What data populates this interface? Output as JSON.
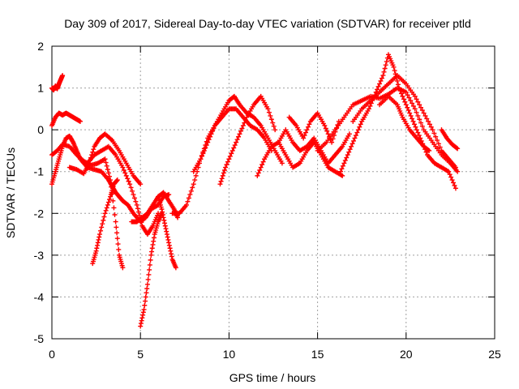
{
  "chart_data": {
    "type": "scatter",
    "title": "Day 309 of 2017, Sidereal Day-to-day VTEC variation (SDTVAR) for receiver ptld",
    "xlabel": "GPS time / hours",
    "ylabel": "SDTVAR / TECUs",
    "xlim": [
      0,
      25
    ],
    "ylim": [
      -5,
      2
    ],
    "xticks": [
      "0",
      "5",
      "10",
      "15",
      "20",
      "25"
    ],
    "yticks": [
      "-5",
      "-4",
      "-3",
      "-2",
      "-1",
      "0",
      "1",
      "2"
    ],
    "grid": true,
    "marker": "plus",
    "color": "#ff0000",
    "series": [
      {
        "x": [
          0.0,
          0.1,
          0.2,
          0.3,
          0.4,
          0.5,
          0.6
        ],
        "y": [
          1.0,
          0.95,
          1.05,
          0.98,
          1.1,
          1.2,
          1.3
        ]
      },
      {
        "x": [
          0.0,
          0.2,
          0.4,
          0.6,
          0.8,
          1.0,
          1.2,
          1.4,
          1.6
        ],
        "y": [
          0.1,
          0.3,
          0.4,
          0.35,
          0.4,
          0.35,
          0.3,
          0.25,
          0.2
        ]
      },
      {
        "x": [
          0.0,
          0.3,
          0.6,
          1.0,
          1.4,
          1.8,
          2.2,
          2.6,
          3.0,
          3.3,
          3.6,
          3.8,
          4.0
        ],
        "y": [
          -0.6,
          -0.5,
          -0.35,
          -0.4,
          -0.6,
          -0.75,
          -0.85,
          -0.8,
          -0.7,
          -1.2,
          -2.2,
          -3.0,
          -3.3
        ]
      },
      {
        "x": [
          0.0,
          0.2,
          0.4,
          0.6,
          0.8,
          1.0,
          1.2,
          1.4,
          1.6,
          2.0,
          2.4,
          2.8,
          3.2,
          3.4,
          3.6,
          3.8,
          4.0,
          4.3,
          4.6,
          5.0,
          5.3,
          5.6,
          6.0,
          6.3,
          6.6
        ],
        "y": [
          -1.3,
          -1.0,
          -0.7,
          -0.4,
          -0.2,
          -0.15,
          -0.3,
          -0.5,
          -0.7,
          -0.9,
          -0.95,
          -1.0,
          -1.2,
          -1.35,
          -1.5,
          -1.6,
          -1.7,
          -1.8,
          -2.0,
          -2.2,
          -2.1,
          -1.9,
          -1.8,
          -1.6,
          -1.55
        ]
      },
      {
        "x": [
          1.0,
          1.4,
          1.8,
          2.1,
          2.4,
          2.7,
          3.0,
          3.4,
          3.8,
          4.2,
          4.6,
          5.0
        ],
        "y": [
          -0.9,
          -0.95,
          -1.05,
          -0.8,
          -0.4,
          -0.2,
          -0.1,
          -0.25,
          -0.5,
          -0.8,
          -1.1,
          -1.3
        ]
      },
      {
        "x": [
          2.3,
          2.5,
          2.7,
          3.0,
          3.3,
          3.5,
          3.7
        ],
        "y": [
          -3.2,
          -2.9,
          -2.5,
          -2.0,
          -1.6,
          -1.3,
          -1.2
        ]
      },
      {
        "x": [
          2.0,
          2.4,
          2.8,
          3.2,
          3.6,
          4.0,
          4.4,
          4.8,
          5.1,
          5.4,
          5.7,
          6.0
        ],
        "y": [
          -0.8,
          -0.6,
          -0.5,
          -0.4,
          -0.6,
          -0.9,
          -1.3,
          -1.8,
          -2.3,
          -2.5,
          -2.3,
          -2.0
        ]
      },
      {
        "x": [
          4.5,
          4.8,
          5.1,
          5.4,
          5.7,
          6.0,
          6.3,
          6.6,
          6.9,
          7.1
        ],
        "y": [
          -2.2,
          -2.2,
          -2.1,
          -2.0,
          -1.8,
          -1.6,
          -1.5,
          -1.7,
          -1.9,
          -2.1
        ]
      },
      {
        "x": [
          5.0,
          5.2,
          5.4,
          5.6,
          5.8,
          6.0,
          6.2
        ],
        "y": [
          -4.7,
          -4.3,
          -3.7,
          -3.0,
          -2.5,
          -2.2,
          -2.0
        ]
      },
      {
        "x": [
          6.0,
          6.2,
          6.4,
          6.6,
          6.8,
          7.0
        ],
        "y": [
          -1.6,
          -1.9,
          -2.3,
          -2.7,
          -3.1,
          -3.3
        ]
      },
      {
        "x": [
          6.8,
          7.2,
          7.6,
          8.0,
          8.4,
          8.8,
          9.2,
          9.6,
          10.0,
          10.4,
          10.8,
          11.2,
          11.6,
          12.0,
          12.4
        ],
        "y": [
          -2.0,
          -2.0,
          -1.8,
          -1.3,
          -0.7,
          -0.2,
          0.1,
          0.3,
          0.5,
          0.5,
          0.3,
          0.1,
          0.0,
          -0.2,
          -0.5
        ]
      },
      {
        "x": [
          8.0,
          8.4,
          8.8,
          9.2,
          9.6,
          10.0,
          10.3,
          10.6,
          11.0,
          11.4,
          11.8,
          12.2,
          12.6,
          13.0
        ],
        "y": [
          -1.0,
          -0.7,
          -0.3,
          0.1,
          0.4,
          0.7,
          0.8,
          0.6,
          0.4,
          0.3,
          0.1,
          -0.2,
          -0.5,
          -0.8
        ]
      },
      {
        "x": [
          9.5,
          9.8,
          10.2,
          10.6,
          11.0,
          11.4,
          11.8,
          12.2,
          12.6
        ],
        "y": [
          -1.3,
          -0.9,
          -0.5,
          -0.1,
          0.3,
          0.6,
          0.8,
          0.5,
          0.0
        ]
      },
      {
        "x": [
          11.6,
          12.0,
          12.4,
          12.8,
          13.2,
          13.6,
          14.0,
          14.4,
          14.8,
          15.2,
          15.6,
          16.0,
          16.4,
          16.8
        ],
        "y": [
          -1.1,
          -0.7,
          -0.4,
          -0.3,
          0.0,
          -0.3,
          -0.5,
          -0.4,
          -0.2,
          -0.5,
          -0.8,
          -0.6,
          -0.4,
          -0.1
        ]
      },
      {
        "x": [
          12.8,
          13.2,
          13.6,
          14.0,
          14.4,
          14.8,
          15.2,
          15.6,
          16.0,
          16.4
        ],
        "y": [
          -0.3,
          -0.6,
          -0.9,
          -0.8,
          -0.5,
          -0.3,
          -0.6,
          -0.9,
          -1.0,
          -1.1
        ]
      },
      {
        "x": [
          13.4,
          13.8,
          14.2,
          14.6,
          15.0,
          15.4,
          15.8,
          16.2
        ],
        "y": [
          0.3,
          0.1,
          -0.2,
          0.2,
          0.4,
          0.1,
          -0.3,
          0.2
        ]
      },
      {
        "x": [
          15.0,
          15.5,
          16.0,
          16.5,
          17.0,
          17.5,
          18.0,
          18.5,
          19.0,
          19.5,
          20.0,
          20.5,
          21.0,
          21.5,
          22.0,
          22.5,
          22.9
        ],
        "y": [
          -0.5,
          -0.3,
          0.0,
          0.3,
          0.6,
          0.7,
          0.8,
          0.75,
          0.85,
          1.0,
          0.9,
          0.5,
          0.0,
          -0.3,
          -0.6,
          -0.8,
          -1.0
        ]
      },
      {
        "x": [
          16.3,
          16.7,
          17.1,
          17.5,
          17.9,
          18.3,
          18.7,
          19.0,
          19.3,
          19.6,
          20.0,
          20.4,
          20.8,
          21.2,
          21.6,
          22.0,
          22.4,
          22.8
        ],
        "y": [
          -1.0,
          -0.6,
          -0.2,
          0.2,
          0.5,
          0.9,
          1.3,
          1.8,
          1.5,
          1.0,
          0.6,
          0.2,
          -0.2,
          -0.6,
          -0.8,
          -0.9,
          -1.0,
          -1.4
        ]
      },
      {
        "x": [
          17.0,
          17.5,
          18.0,
          18.5,
          19.0,
          19.5,
          20.0,
          20.5,
          21.0,
          21.5,
          22.0,
          22.4,
          22.8
        ],
        "y": [
          0.2,
          0.5,
          0.7,
          0.9,
          1.1,
          1.3,
          1.1,
          0.8,
          0.4,
          0.0,
          -0.5,
          -0.7,
          -0.9
        ]
      },
      {
        "x": [
          18.5,
          19.0,
          19.5,
          19.8,
          20.2,
          20.6,
          21.0,
          21.3
        ],
        "y": [
          0.6,
          0.8,
          0.6,
          0.3,
          0.0,
          -0.2,
          -0.4,
          -0.5
        ]
      },
      {
        "x": [
          22.0,
          22.3,
          22.6,
          22.9
        ],
        "y": [
          0.0,
          -0.2,
          -0.35,
          -0.45
        ]
      }
    ]
  }
}
